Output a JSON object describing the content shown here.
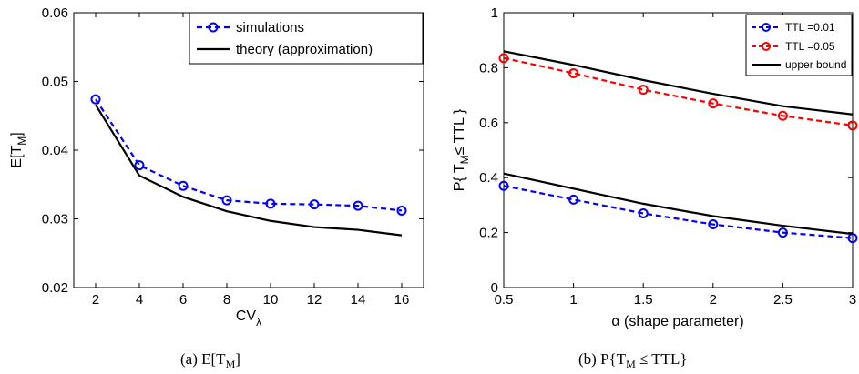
{
  "chart_data": [
    {
      "type": "line",
      "x": [
        2,
        4,
        6,
        8,
        10,
        12,
        14,
        16
      ],
      "xlabel": "CV",
      "xlabel_sub": "λ",
      "ylabel": "E[T",
      "ylabel_sub": "M",
      "ylabel_end": "]",
      "xlim": [
        1,
        17
      ],
      "ylim": [
        0.02,
        0.06
      ],
      "xticks": [
        "2",
        "4",
        "6",
        "8",
        "10",
        "12",
        "14",
        "16"
      ],
      "yticks": [
        "0.02",
        "0.03",
        "0.04",
        "0.05",
        "0.06"
      ],
      "legend_position": "top-right",
      "series": [
        {
          "name": "simulations",
          "values": [
            0.0474,
            0.0378,
            0.0348,
            0.0327,
            0.0322,
            0.0321,
            0.0319,
            0.0312
          ],
          "color": "#0000ff",
          "style": "dashed",
          "marker": "circle"
        },
        {
          "name": "theory (approximation)",
          "values": [
            0.0466,
            0.0363,
            0.0332,
            0.0311,
            0.0297,
            0.0288,
            0.0284,
            0.0276
          ],
          "color": "#000000",
          "style": "solid",
          "marker": "none"
        }
      ],
      "caption": "(a)  E[T",
      "caption_sub": "M",
      "caption_end": "]"
    },
    {
      "type": "line",
      "x": [
        0.5,
        1,
        1.5,
        2,
        2.5,
        3
      ],
      "xlabel": "α (shape parameter)",
      "ylabel": "P{ T",
      "ylabel_sub": "M",
      "ylabel_end": "≤ TTL }",
      "xlim": [
        0.5,
        3
      ],
      "ylim": [
        0,
        1
      ],
      "xticks": [
        "0.5",
        "1",
        "1.5",
        "2",
        "2.5",
        "3"
      ],
      "yticks": [
        "0",
        "0.2",
        "0.4",
        "0.6",
        "0.8",
        "1"
      ],
      "legend_position": "top-right",
      "series": [
        {
          "name": "TTL  =0.01",
          "values": [
            0.37,
            0.32,
            0.27,
            0.23,
            0.2,
            0.18
          ],
          "color": "#0000ff",
          "style": "dashed",
          "marker": "circle"
        },
        {
          "name": "TTL  =0.05",
          "values": [
            0.835,
            0.78,
            0.72,
            0.67,
            0.625,
            0.59
          ],
          "color": "#ff0000",
          "style": "dashed",
          "marker": "circle"
        },
        {
          "name": "upper bound",
          "values": [
            0.86,
            0.81,
            0.755,
            0.705,
            0.66,
            0.63
          ],
          "color": "#000000",
          "style": "solid",
          "marker": "none"
        },
        {
          "name": "upper bound",
          "values": [
            0.415,
            0.36,
            0.305,
            0.26,
            0.225,
            0.195
          ],
          "color": "#000000",
          "style": "solid",
          "marker": "none",
          "in_legend": false
        }
      ],
      "caption": "(b)  P{T",
      "caption_sub": "M",
      "caption_end": " ≤ TTL}"
    }
  ]
}
